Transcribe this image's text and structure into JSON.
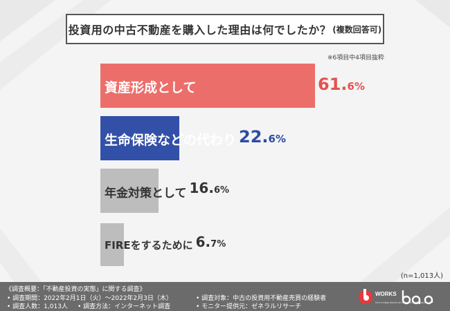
{
  "title": {
    "main": "投資用の中古不動産を購入した理由は何でしたか？",
    "sub": "(複数回答可)"
  },
  "note": "※6項目中4項目抜粋",
  "sample_size": "(n=1,013人)",
  "chart_data": {
    "type": "bar",
    "orientation": "horizontal",
    "categories": [
      "資産形成として",
      "生命保険などの代わり",
      "年金対策として",
      "FIREをするために"
    ],
    "values": [
      61.6,
      22.6,
      16.6,
      6.7
    ],
    "value_labels": [
      {
        "big": "61.",
        "small": "6%"
      },
      {
        "big": "22.",
        "small": "6%"
      },
      {
        "big": "16.",
        "small": "6%"
      },
      {
        "big": "6.",
        "small": "7%"
      }
    ],
    "unit": "%",
    "colors": [
      "#ec6e6a",
      "#3350a8",
      "#bdbdbd",
      "#bdbdbd"
    ],
    "label_colors": [
      "#ffffff",
      "#ffffff",
      "#333333",
      "#333333"
    ],
    "value_colors": [
      "#e4524f",
      "#2e4aa3",
      "#333333",
      "#333333"
    ],
    "xlim": [
      0,
      100
    ],
    "grid": false,
    "legend": "none"
  },
  "footer": {
    "survey_title": "《調査概要：「不動産投資の実態」に関する調査》",
    "period": "• 調査期間：2022年2月1日（火）～2022年2月3日（木）",
    "respondents": "• 調査人数：1,013人",
    "method": "• 調査方法：インターネット調査",
    "target": "• 調査対象：中古の投資用不動産売買の経験者",
    "provider": "• モニター提供元：ゼネラルリサーチ"
  },
  "logo": {
    "text": "WORKS",
    "tagline": "Drive a bridge between all customers and the future."
  },
  "colors": {
    "background": "#f3f3f3",
    "footer": "#6b6b6b",
    "logo_red": "#e8383d"
  }
}
